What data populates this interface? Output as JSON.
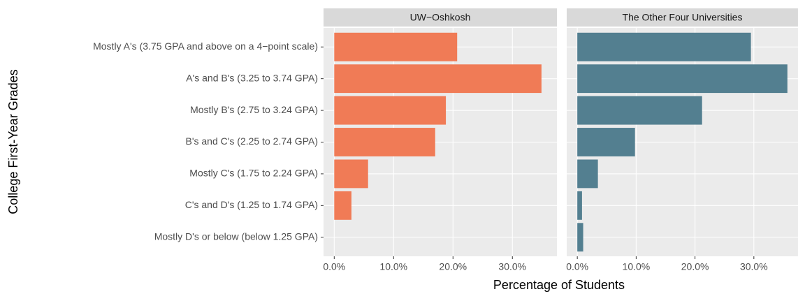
{
  "chart_data": {
    "type": "bar",
    "orientation": "horizontal",
    "x_label": "Percentage of Students",
    "y_label": "College First-Year Grades",
    "categories": [
      "Mostly A's (3.75 GPA and above on a 4−point scale)",
      "A's and B's (3.25 to 3.74 GPA)",
      "Mostly B's (2.75 to 3.24 GPA)",
      "B's and C's (2.25 to 2.74 GPA)",
      "Mostly C's (1.75 to 2.24 GPA)",
      "C's and D's (1.25 to 1.74 GPA)",
      "Mostly D's or below (below 1.25 GPA)"
    ],
    "facets": [
      {
        "name": "UW−Oshkosh",
        "color": "#f07b56",
        "values": [
          20.7,
          34.9,
          18.8,
          17.0,
          5.7,
          2.9,
          0
        ]
      },
      {
        "name": "The Other Four Universities",
        "color": "#537f90",
        "values": [
          29.5,
          35.7,
          21.2,
          9.8,
          3.5,
          0.8,
          1.0
        ]
      }
    ],
    "xlim": [
      -1.8,
      37.5
    ],
    "xticks": [
      {
        "value": 0,
        "label": "0.0%"
      },
      {
        "value": 10,
        "label": "10.0%"
      },
      {
        "value": 20,
        "label": "20.0%"
      },
      {
        "value": 30,
        "label": "30.0%"
      }
    ],
    "grid": true
  }
}
